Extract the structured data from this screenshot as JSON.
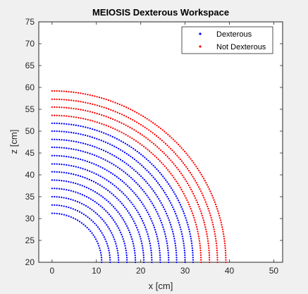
{
  "chart_data": {
    "type": "scatter",
    "title": "MEIOSIS Dexterous Workspace",
    "xlabel": "x [cm]",
    "ylabel": "z [cm]",
    "xlim": [
      -3,
      52
    ],
    "ylim": [
      20,
      75
    ],
    "xticks": [
      0,
      10,
      20,
      30,
      40,
      50
    ],
    "yticks": [
      20,
      25,
      30,
      35,
      40,
      45,
      50,
      55,
      60,
      65,
      70,
      75
    ],
    "grid": false,
    "legend_position": "top-right",
    "base_z": 20,
    "arc_radii": [
      11.2,
      13.1,
      15.0,
      16.9,
      18.8,
      20.7,
      22.5,
      24.4,
      26.3,
      28.1,
      30.0,
      31.8,
      33.6,
      35.5,
      37.3,
      39.2
    ],
    "series": [
      {
        "name": "Dexterous",
        "color": "#0000ff",
        "ring_indices": [
          0,
          1,
          2,
          3,
          4,
          5,
          6,
          7,
          8,
          9,
          10,
          11
        ]
      },
      {
        "name": "Not Dexterous",
        "color": "#ff0000",
        "ring_indices": [
          12,
          13,
          14,
          15
        ]
      }
    ]
  }
}
